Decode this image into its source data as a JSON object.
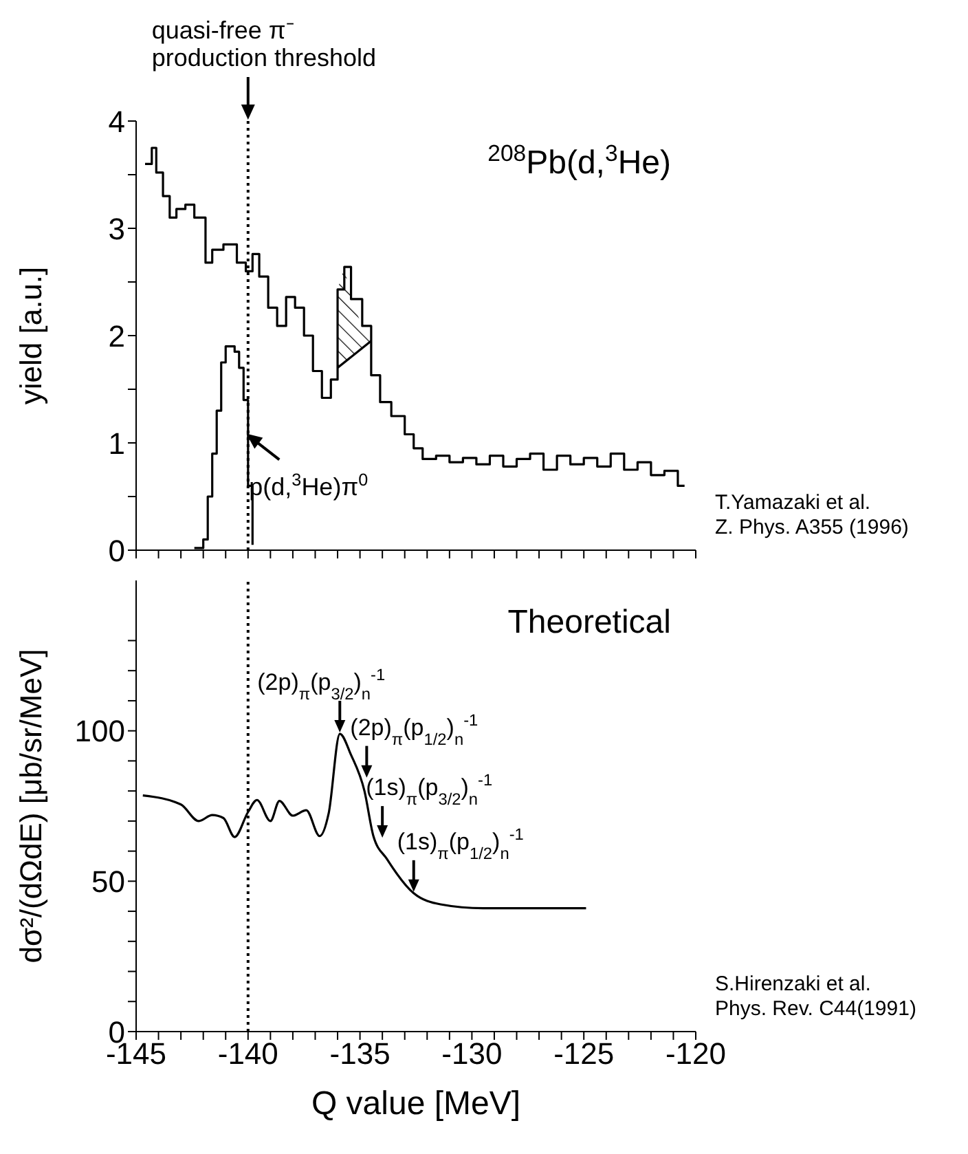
{
  "chart_data": [
    {
      "type": "step",
      "ylabel": "yield [a.u.]",
      "xlim": [
        -145,
        -120
      ],
      "xticks": [
        -145,
        {
          "value": -144,
          "label": null
        },
        {
          "value": -143,
          "label": null
        },
        {
          "value": -142,
          "label": null
        },
        {
          "value": -141,
          "label": null
        },
        -140,
        {
          "value": -139,
          "label": null
        },
        {
          "value": -138,
          "label": null
        },
        {
          "value": -137,
          "label": null
        },
        {
          "value": -136,
          "label": null
        },
        -135,
        {
          "value": -134,
          "label": null
        },
        {
          "value": -133,
          "label": null
        },
        {
          "value": -132,
          "label": null
        },
        {
          "value": -131,
          "label": null
        },
        -130,
        {
          "value": -129,
          "label": null
        },
        {
          "value": -128,
          "label": null
        },
        {
          "value": -127,
          "label": null
        },
        {
          "value": -126,
          "label": null
        },
        -125,
        {
          "value": -124,
          "label": null
        },
        {
          "value": -123,
          "label": null
        },
        {
          "value": -122,
          "label": null
        },
        {
          "value": -121,
          "label": null
        },
        -120
      ],
      "tick_labels": "y",
      "ylim": [
        0,
        4
      ],
      "yticks": [
        0,
        {
          "value": 0.5,
          "label": null
        },
        1,
        {
          "value": 1.5,
          "label": null
        },
        2,
        {
          "value": 2.5,
          "label": null
        },
        3,
        {
          "value": 3.5,
          "label": null
        },
        4
      ],
      "grid": false,
      "legend": false,
      "series": [
        {
          "color": "#000000",
          "x": [
            -144.6,
            -144.3,
            -144.1,
            -143.8,
            -143.5,
            -143.2,
            -142.8,
            -142.4,
            -141.9,
            -141.6,
            -141.1,
            -140.5,
            -140.1,
            -139.8,
            -139.5,
            -139.1,
            -138.7,
            -138.3,
            -137.9,
            -137.5,
            -137.1,
            -136.7,
            -136.3,
            -136.0,
            -135.7,
            -135.4,
            -134.9,
            -134.5,
            -134.1,
            -133.6,
            -133.0,
            -132.6,
            -132.2,
            -131.6,
            -131.0,
            -130.4,
            -129.8,
            -129.2,
            -128.6,
            -128.0,
            -127.4,
            -126.8,
            -126.2,
            -125.6,
            -125.0,
            -124.4,
            -123.8,
            -123.2,
            -122.6,
            -122.0,
            -121.4,
            -120.8,
            -120.5
          ],
          "values": [
            3.6,
            3.75,
            3.52,
            3.3,
            3.1,
            3.18,
            3.22,
            3.1,
            2.68,
            2.8,
            2.85,
            2.68,
            2.6,
            2.76,
            2.55,
            2.26,
            2.09,
            2.36,
            2.26,
            2.0,
            1.67,
            1.42,
            1.59,
            2.43,
            2.64,
            2.34,
            2.09,
            1.63,
            1.38,
            1.25,
            1.08,
            0.95,
            0.85,
            0.88,
            0.82,
            0.86,
            0.8,
            0.88,
            0.78,
            0.85,
            0.9,
            0.75,
            0.88,
            0.8,
            0.86,
            0.78,
            0.9,
            0.75,
            0.82,
            0.7,
            0.74,
            0.6,
            0.6
          ]
        },
        {
          "color": "#000000",
          "x": [
            -142.4,
            -142.0,
            -141.8,
            -141.6,
            -141.4,
            -141.2,
            -141.0,
            -140.8,
            -140.6,
            -140.4,
            -140.2,
            -140.0,
            -139.8
          ],
          "values": [
            0.02,
            0.1,
            0.5,
            0.9,
            1.3,
            1.75,
            1.9,
            1.9,
            1.85,
            1.7,
            1.4,
            0.6,
            0.05
          ]
        },
        {
          "type": "area",
          "color": "#000000",
          "x": [
            -136.0,
            -135.7,
            -135.4,
            -134.9,
            -134.5
          ],
          "values": [
            2.43,
            2.64,
            2.34,
            2.09,
            1.95
          ]
        },
        {
          "type": "line",
          "color": "#000000",
          "x": [
            -136.0,
            -134.5
          ],
          "values": [
            1.7,
            1.95
          ]
        }
      ],
      "ref_lines": [
        {
          "axis": "x",
          "value": -140,
          "label": "quasi-free π⁻ production threshold",
          "line_style": "dotted",
          "color": "#000000"
        }
      ],
      "annotations": [
        "$^{208}$Pb(d,$^{3}$He)",
        "T.Yamazaki et al.",
        "Z. Phys. A355 (1996)",
        {
          "text": "p(d,$^{3}$He)π$^{0}$",
          "x": -140.2,
          "y": 1.1
        }
      ]
    },
    {
      "type": "line",
      "xlabel": "Q value [MeV]",
      "ylabel": "dσ²/(dΩdE) [μb/sr/MeV]",
      "xlim": [
        -145,
        -120
      ],
      "xticks": [
        -145,
        {
          "value": -144,
          "label": null
        },
        {
          "value": -143,
          "label": null
        },
        {
          "value": -142,
          "label": null
        },
        {
          "value": -141,
          "label": null
        },
        -140,
        {
          "value": -139,
          "label": null
        },
        {
          "value": -138,
          "label": null
        },
        {
          "value": -137,
          "label": null
        },
        {
          "value": -136,
          "label": null
        },
        -135,
        {
          "value": -134,
          "label": null
        },
        {
          "value": -133,
          "label": null
        },
        {
          "value": -132,
          "label": null
        },
        {
          "value": -131,
          "label": null
        },
        -130,
        {
          "value": -129,
          "label": null
        },
        {
          "value": -128,
          "label": null
        },
        {
          "value": -127,
          "label": null
        },
        {
          "value": -126,
          "label": null
        },
        -125,
        {
          "value": -124,
          "label": null
        },
        {
          "value": -123,
          "label": null
        },
        {
          "value": -122,
          "label": null
        },
        {
          "value": -121,
          "label": null
        },
        -120
      ],
      "ylim": [
        0,
        150
      ],
      "yticks": [
        0,
        {
          "value": 10,
          "label": null
        },
        {
          "value": 20,
          "label": null
        },
        {
          "value": 30,
          "label": null
        },
        {
          "value": 40,
          "label": null
        },
        50,
        {
          "value": 60,
          "label": null
        },
        {
          "value": 70,
          "label": null
        },
        {
          "value": 80,
          "label": null
        },
        {
          "value": 90,
          "label": null
        },
        100,
        {
          "value": 110,
          "label": null
        },
        {
          "value": 120,
          "label": null
        },
        {
          "value": 130,
          "label": null
        }
      ],
      "grid": false,
      "legend": false,
      "line_style": "solid",
      "series": [
        {
          "color": "#000000",
          "x": [
            -144.7,
            -143.0,
            -142.2,
            -141.6,
            -141.1,
            -140.6,
            -140.0,
            -139.6,
            -139.0,
            -138.6,
            -138.0,
            -137.4,
            -136.8,
            -136.4,
            -135.9,
            -135.4,
            -134.8,
            -134.4,
            -133.8,
            -132.6,
            -131.4,
            -129.5,
            -124.9
          ],
          "values": [
            78.5,
            75.5,
            70,
            72,
            71,
            64.7,
            73,
            77,
            70,
            76.7,
            71.8,
            73.6,
            65,
            72.5,
            99,
            92,
            80,
            65,
            57.4,
            46,
            42.3,
            41,
            41
          ]
        }
      ],
      "ref_lines": [
        {
          "axis": "x",
          "value": -140,
          "line_style": "dotted",
          "color": "#000000"
        }
      ],
      "annotations": [
        "Theoretical",
        "S.Hirenzaki et al.",
        "Phys. Rev. C44(1991)",
        {
          "text": "(2p)$_{π}$(p$_{3/2}$)$_{n}$$^{-1}$",
          "x": -135.9,
          "y": 99
        },
        {
          "text": "(2p)$_{π}$(p$_{1/2}$)$_{n}$$^{-1}$",
          "x": -134.7,
          "y": 84
        },
        {
          "text": "(1s)$_{π}$(p$_{3/2}$)$_{n}$$^{-1}$",
          "x": -134.0,
          "y": 64
        },
        {
          "text": "(1s)$_{π}$(p$_{1/2}$)$_{n}$$^{-1}$",
          "x": -132.6,
          "y": 46
        }
      ]
    }
  ]
}
